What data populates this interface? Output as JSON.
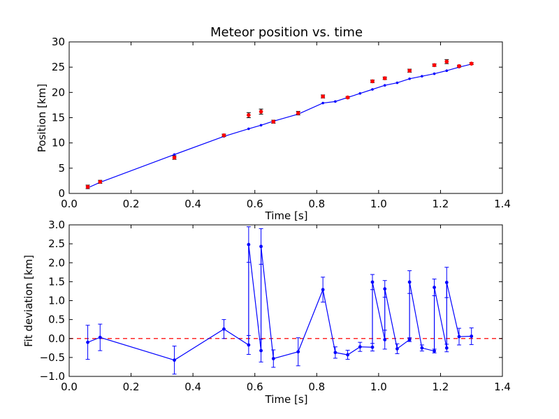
{
  "chart_data": [
    {
      "type": "scatter",
      "title": "Meteor position vs. time",
      "xlabel": "Time [s]",
      "ylabel": "Position [km]",
      "xlim": [
        0.0,
        1.4
      ],
      "ylim": [
        0,
        30
      ],
      "xticks": [
        "0.0",
        "0.2",
        "0.4",
        "0.6",
        "0.8",
        "1.0",
        "1.2",
        "1.4"
      ],
      "yticks": [
        "0",
        "5",
        "10",
        "15",
        "20",
        "25",
        "30"
      ],
      "xtick_values": [
        0.0,
        0.2,
        0.4,
        0.6,
        0.8,
        1.0,
        1.2,
        1.4
      ],
      "ytick_values": [
        0,
        5,
        10,
        15,
        20,
        25,
        30
      ],
      "grid": false,
      "colors": {
        "points": "#ff0000",
        "fit": "#0000ff"
      },
      "measurements": [
        {
          "x": 0.06,
          "y": 1.3,
          "err": 0.35
        },
        {
          "x": 0.1,
          "y": 2.3,
          "err": 0.3
        },
        {
          "x": 0.34,
          "y": 7.1,
          "err": 0.35
        },
        {
          "x": 0.5,
          "y": 11.5,
          "err": 0.25
        },
        {
          "x": 0.58,
          "y": 15.5,
          "err": 0.5
        },
        {
          "x": 0.62,
          "y": 16.2,
          "err": 0.5
        },
        {
          "x": 0.66,
          "y": 14.2,
          "err": 0.3
        },
        {
          "x": 0.74,
          "y": 15.9,
          "err": 0.35
        },
        {
          "x": 0.82,
          "y": 19.2,
          "err": 0.3
        },
        {
          "x": 0.9,
          "y": 19.0,
          "err": 0.2
        },
        {
          "x": 0.98,
          "y": 22.2,
          "err": 0.25
        },
        {
          "x": 1.02,
          "y": 22.8,
          "err": 0.25
        },
        {
          "x": 1.1,
          "y": 24.3,
          "err": 0.3
        },
        {
          "x": 1.18,
          "y": 25.4,
          "err": 0.25
        },
        {
          "x": 1.22,
          "y": 26.1,
          "err": 0.4
        },
        {
          "x": 1.26,
          "y": 25.2,
          "err": 0.2
        },
        {
          "x": 1.3,
          "y": 25.7,
          "err": 0.2
        }
      ],
      "fit_line": {
        "x": [
          0.06,
          0.1,
          0.34,
          0.5,
          0.58,
          0.62,
          0.66,
          0.74,
          0.82,
          0.86,
          0.9,
          0.94,
          0.98,
          1.02,
          1.06,
          1.1,
          1.14,
          1.18,
          1.22,
          1.26,
          1.3
        ],
        "y": [
          1.1,
          2.2,
          7.7,
          11.3,
          12.8,
          13.5,
          14.3,
          15.7,
          17.9,
          18.2,
          19.0,
          19.8,
          20.6,
          21.4,
          21.9,
          22.7,
          23.2,
          23.7,
          24.3,
          25.0,
          25.6
        ]
      }
    },
    {
      "type": "line",
      "xlabel": "Time [s]",
      "ylabel": "Fit deviation [km]",
      "xlim": [
        0.0,
        1.4
      ],
      "ylim": [
        -1.0,
        3.0
      ],
      "xticks": [
        "0.0",
        "0.2",
        "0.4",
        "0.6",
        "0.8",
        "1.0",
        "1.2",
        "1.4"
      ],
      "yticks": [
        "−1.0",
        "−0.5",
        "0.0",
        "0.5",
        "1.0",
        "1.5",
        "2.0",
        "2.5",
        "3.0"
      ],
      "xtick_values": [
        0.0,
        0.2,
        0.4,
        0.6,
        0.8,
        1.0,
        1.2,
        1.4
      ],
      "ytick_values": [
        -1.0,
        -0.5,
        0.0,
        0.5,
        1.0,
        1.5,
        2.0,
        2.5,
        3.0
      ],
      "grid": false,
      "reference_line": {
        "y": 0.0,
        "style": "dashed",
        "color": "#ff0000"
      },
      "colors": {
        "series": "#0000ff"
      },
      "points": [
        {
          "x": 0.06,
          "y": -0.1,
          "err": 0.45
        },
        {
          "x": 0.1,
          "y": 0.03,
          "err": 0.35
        },
        {
          "x": 0.34,
          "y": -0.57,
          "err": 0.37
        },
        {
          "x": 0.5,
          "y": 0.25,
          "err": 0.25
        },
        {
          "x": 0.58,
          "y": -0.17,
          "err": 0.25
        },
        {
          "x": 0.58,
          "y": 2.48,
          "err": 0.47
        },
        {
          "x": 0.62,
          "y": -0.32,
          "err": 0.3
        },
        {
          "x": 0.62,
          "y": 2.43,
          "err": 0.47
        },
        {
          "x": 0.66,
          "y": -0.53,
          "err": 0.23
        },
        {
          "x": 0.74,
          "y": -0.35,
          "err": 0.37
        },
        {
          "x": 0.82,
          "y": 1.29,
          "err": 0.33
        },
        {
          "x": 0.86,
          "y": -0.37,
          "err": 0.15
        },
        {
          "x": 0.9,
          "y": -0.43,
          "err": 0.12
        },
        {
          "x": 0.94,
          "y": -0.22,
          "err": 0.12
        },
        {
          "x": 0.98,
          "y": -0.23,
          "err": 0.1
        },
        {
          "x": 0.98,
          "y": 1.49,
          "err": 0.2
        },
        {
          "x": 1.02,
          "y": -0.03,
          "err": 0.25
        },
        {
          "x": 1.02,
          "y": 1.31,
          "err": 0.22
        },
        {
          "x": 1.06,
          "y": -0.27,
          "err": 0.13
        },
        {
          "x": 1.1,
          "y": -0.03,
          "err": 0.05
        },
        {
          "x": 1.1,
          "y": 1.49,
          "err": 0.3
        },
        {
          "x": 1.14,
          "y": -0.25,
          "err": 0.08
        },
        {
          "x": 1.18,
          "y": -0.33,
          "err": 0.05
        },
        {
          "x": 1.18,
          "y": 1.35,
          "err": 0.22
        },
        {
          "x": 1.22,
          "y": -0.25,
          "err": 0.1
        },
        {
          "x": 1.22,
          "y": 1.48,
          "err": 0.4
        },
        {
          "x": 1.26,
          "y": 0.05,
          "err": 0.22
        },
        {
          "x": 1.3,
          "y": 0.06,
          "err": 0.22
        }
      ]
    }
  ]
}
